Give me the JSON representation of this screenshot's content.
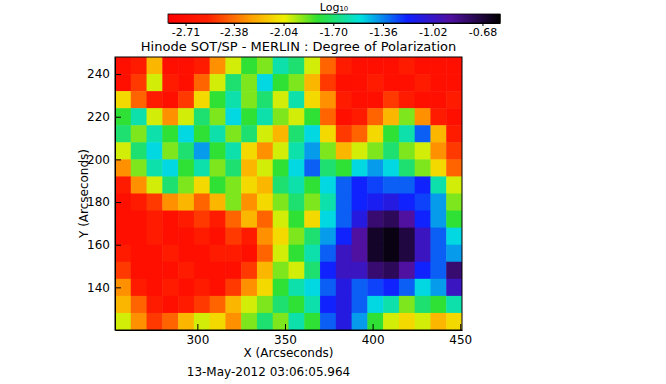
{
  "chart_data": {
    "type": "heatmap",
    "title": "Hinode SOT/SP  - MERLIN : Degree of Polarization",
    "xlabel": "X (Arcseconds)",
    "ylabel": "Y (Arcseconds)",
    "annotations": [
      "13-May-2012 03:06:05.964"
    ],
    "colorbar_label": "Log₁₀",
    "colorbar_range": [
      -2.83,
      -0.56
    ],
    "colorbar_ticks": [
      -2.71,
      -2.38,
      -2.04,
      {
        "value": -1.7,
        "label": "-1.70"
      },
      -1.36,
      -1.02,
      -0.68
    ],
    "xlim": [
      253,
      451
    ],
    "ylim": [
      120,
      248
    ],
    "xticks": [
      300,
      350,
      400,
      450
    ],
    "yticks": [
      140,
      160,
      180,
      200,
      220,
      240
    ],
    "x": [
      257.5,
      266.5,
      275.5,
      284.5,
      293.5,
      302.5,
      311.5,
      320.5,
      329.5,
      338.5,
      347.5,
      356.5,
      365.5,
      374.5,
      383.5,
      392.5,
      401.5,
      410.5,
      419.5,
      428.5,
      437.5,
      446.5
    ],
    "y": [
      244,
      236,
      228,
      220,
      212,
      204,
      196,
      188,
      180,
      172,
      164,
      156,
      148,
      140,
      132,
      124
    ],
    "z": [
      [
        -2.7,
        -2.6,
        -2.2,
        -2.7,
        -2.7,
        -2.6,
        -2.3,
        -2.0,
        -1.8,
        -1.9,
        -1.6,
        -1.7,
        -2.0,
        -2.4,
        -2.6,
        -2.7,
        -2.7,
        -2.7,
        -2.6,
        -2.7,
        -2.7,
        -2.7
      ],
      [
        -2.7,
        -2.5,
        -2.0,
        -2.6,
        -2.7,
        -2.4,
        -2.0,
        -1.7,
        -1.9,
        -1.5,
        -1.8,
        -1.9,
        -2.2,
        -2.5,
        -2.7,
        -2.7,
        -2.6,
        -2.7,
        -2.7,
        -2.6,
        -2.7,
        -2.7
      ],
      [
        -2.1,
        -2.4,
        -2.6,
        -2.7,
        -2.5,
        -2.1,
        -1.8,
        -1.6,
        -1.9,
        -1.7,
        -2.0,
        -1.6,
        -2.1,
        -2.3,
        -2.6,
        -2.7,
        -2.7,
        -2.5,
        -2.6,
        -2.7,
        -2.7,
        -2.6
      ],
      [
        -1.8,
        -1.6,
        -2.0,
        -2.3,
        -2.0,
        -1.7,
        -1.9,
        -1.5,
        -1.8,
        -1.6,
        -1.9,
        -2.0,
        -1.8,
        -2.4,
        -2.7,
        -2.6,
        -2.4,
        -2.2,
        -1.9,
        -2.3,
        -2.6,
        -2.7
      ],
      [
        -1.7,
        -1.9,
        -1.6,
        -1.8,
        -1.5,
        -1.8,
        -1.6,
        -1.9,
        -1.7,
        -2.0,
        -2.2,
        -1.7,
        -1.5,
        -2.1,
        -2.5,
        -2.4,
        -2.1,
        -1.8,
        -1.6,
        -1.3,
        -2.2,
        -2.6
      ],
      [
        -2.0,
        -1.7,
        -1.5,
        -1.9,
        -1.7,
        -1.4,
        -1.8,
        -1.6,
        -2.1,
        -2.3,
        -2.0,
        -1.6,
        -1.4,
        -1.9,
        -2.2,
        -2.0,
        -1.9,
        -1.7,
        -1.9,
        -2.0,
        -2.3,
        -2.5
      ],
      [
        -2.3,
        -1.9,
        -1.6,
        -1.5,
        -1.8,
        -1.6,
        -1.9,
        -1.7,
        -2.2,
        -2.0,
        -1.8,
        -1.5,
        -1.3,
        -1.7,
        -1.8,
        -1.5,
        -1.4,
        -1.5,
        -1.7,
        -1.9,
        -2.1,
        -2.4
      ],
      [
        -2.6,
        -2.3,
        -2.0,
        -1.7,
        -1.9,
        -2.1,
        -1.8,
        -1.9,
        -2.1,
        -2.2,
        -1.7,
        -1.6,
        -1.8,
        -1.5,
        -1.3,
        -1.2,
        -1.25,
        -1.3,
        -1.3,
        -1.2,
        -1.6,
        -2.0
      ],
      [
        -2.7,
        -2.6,
        -2.5,
        -2.3,
        -2.2,
        -2.4,
        -2.2,
        -1.9,
        -2.3,
        -2.1,
        -1.9,
        -1.7,
        -1.9,
        -1.6,
        -1.3,
        -1.2,
        -1.15,
        -1.1,
        -1.2,
        -1.25,
        -1.4,
        -1.9
      ],
      [
        -2.7,
        -2.7,
        -2.6,
        -2.7,
        -2.6,
        -2.5,
        -2.6,
        -2.4,
        -2.2,
        -2.4,
        -2.0,
        -1.8,
        -2.1,
        -1.5,
        -1.3,
        -1.1,
        -0.8,
        -0.75,
        -0.9,
        -1.2,
        -1.4,
        -1.8
      ],
      [
        -2.7,
        -2.7,
        -2.6,
        -2.7,
        -2.7,
        -2.6,
        -2.7,
        -2.5,
        -2.6,
        -2.3,
        -2.1,
        -1.9,
        -1.7,
        -1.4,
        -1.2,
        -0.9,
        -0.65,
        -0.6,
        -0.7,
        -1.0,
        -1.3,
        -1.5
      ],
      [
        -2.6,
        -2.7,
        -2.7,
        -2.6,
        -2.7,
        -2.7,
        -2.6,
        -2.6,
        -2.7,
        -2.4,
        -2.0,
        -1.8,
        -1.6,
        -1.3,
        -1.0,
        -0.9,
        -0.65,
        -0.6,
        -0.7,
        -1.0,
        -1.3,
        -1.4
      ],
      [
        -2.5,
        -2.7,
        -2.7,
        -2.7,
        -2.6,
        -2.7,
        -2.7,
        -2.7,
        -2.5,
        -2.2,
        -1.9,
        -2.0,
        -1.7,
        -1.2,
        -1.0,
        -1.0,
        -0.8,
        -0.75,
        -0.9,
        -1.2,
        -1.3,
        -0.8
      ],
      [
        -2.3,
        -2.6,
        -2.7,
        -2.6,
        -2.7,
        -2.6,
        -2.7,
        -2.5,
        -2.3,
        -2.1,
        -1.8,
        -1.6,
        -1.5,
        -1.3,
        -1.1,
        -1.3,
        -1.25,
        -1.2,
        -1.3,
        -1.5,
        -1.4,
        -1.0
      ],
      [
        -2.2,
        -2.4,
        -2.6,
        -2.7,
        -2.6,
        -2.5,
        -2.4,
        -2.2,
        -2.0,
        -1.9,
        -1.7,
        -1.8,
        -1.6,
        -1.2,
        -1.1,
        -1.3,
        -1.5,
        -1.6,
        -1.9,
        -1.7,
        -1.8,
        -1.6
      ],
      [
        -2.0,
        -2.3,
        -2.5,
        -2.4,
        -2.2,
        -2.0,
        -2.1,
        -2.3,
        -1.9,
        -1.7,
        -1.9,
        -1.6,
        -1.8,
        -1.3,
        -1.1,
        -1.4,
        -1.8,
        -2.0,
        -2.1,
        -2.0,
        -2.2,
        -2.1
      ]
    ]
  }
}
